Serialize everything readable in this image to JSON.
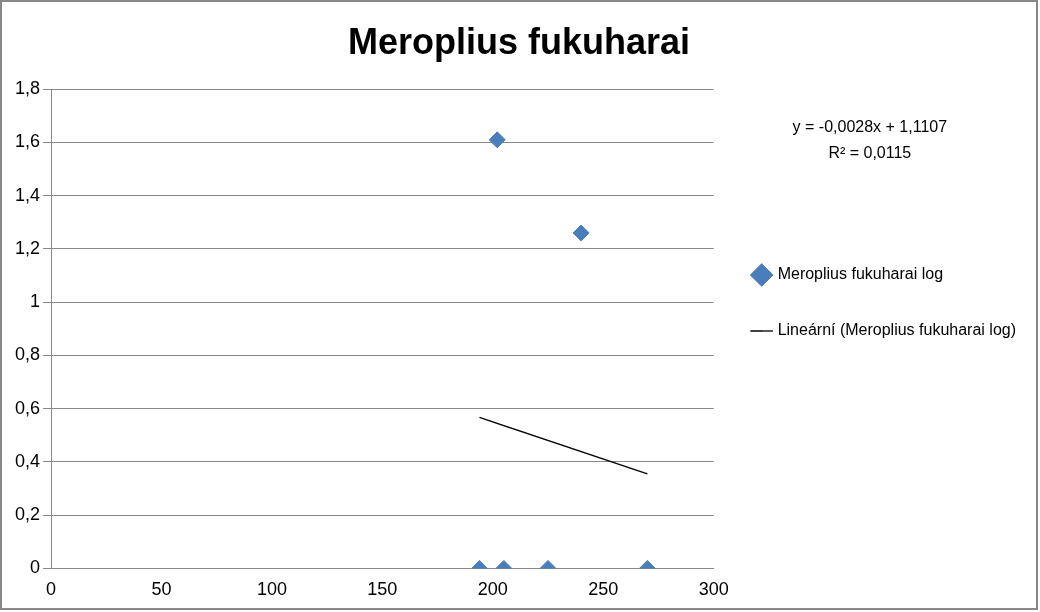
{
  "chart_data": {
    "type": "scatter",
    "title": "Meroplius fukuharai",
    "series": [
      {
        "name": "Meroplius fukuharai log",
        "color": "#4a7ebb",
        "x": [
          194,
          202,
          205,
          225,
          240,
          270
        ],
        "values": [
          0,
          1.61,
          0,
          0,
          1.26,
          0
        ]
      },
      {
        "name": "Lineární (Meroplius fukuharai log)",
        "type": "line",
        "color": "#000000",
        "x": [
          194,
          270
        ],
        "values": [
          0.567,
          0.355
        ],
        "marker": "none"
      }
    ],
    "xlim": [
      0,
      300
    ],
    "xticks": [
      0,
      50,
      100,
      150,
      200,
      250,
      300
    ],
    "ylim": [
      0,
      1.8
    ],
    "yticks": [
      {
        "value": 0,
        "label": "0"
      },
      {
        "value": 0.2,
        "label": "0,2"
      },
      {
        "value": 0.4,
        "label": "0,4"
      },
      {
        "value": 0.6,
        "label": "0,6"
      },
      {
        "value": 0.8,
        "label": "0,8"
      },
      {
        "value": 1,
        "label": "1"
      },
      {
        "value": 1.2,
        "label": "1,2"
      },
      {
        "value": 1.4,
        "label": "1,4"
      },
      {
        "value": 1.6,
        "label": "1,6"
      },
      {
        "value": 1.8,
        "label": "1,8"
      }
    ],
    "grid": "y",
    "legend": "right",
    "marker": "diamond",
    "annotations": [
      "y = -0,0028x + 1,1107",
      "R² = 0,0115"
    ]
  }
}
